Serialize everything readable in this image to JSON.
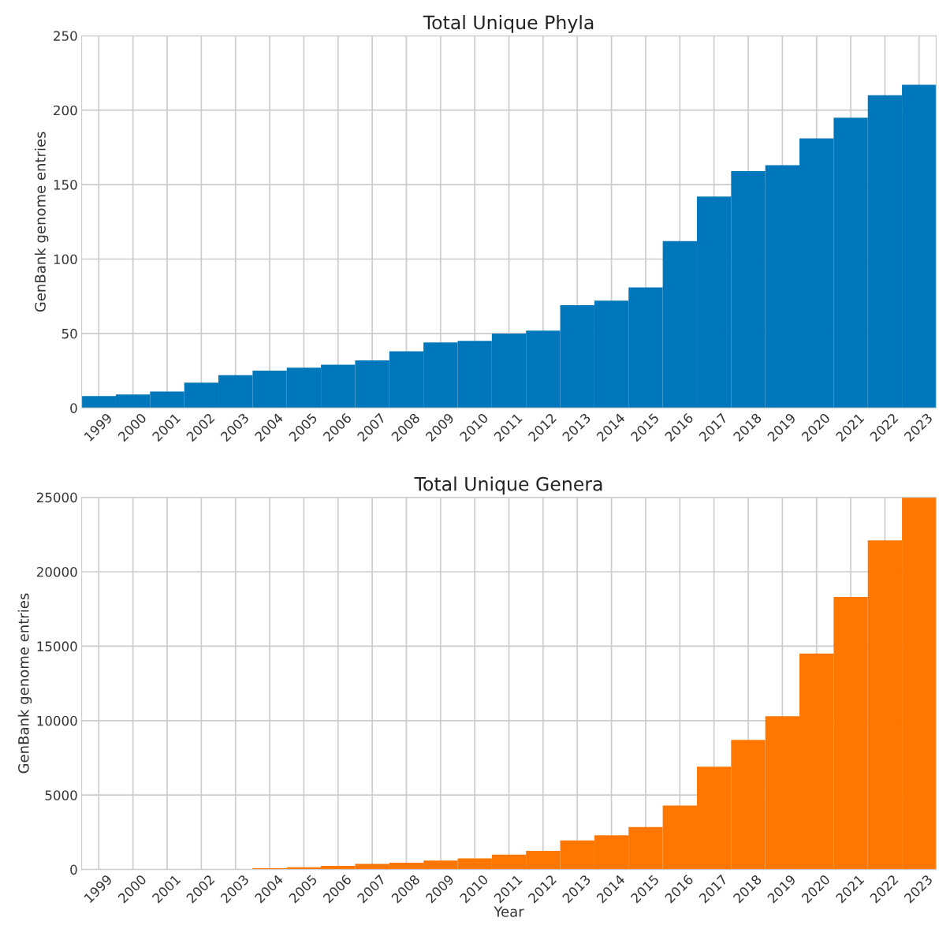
{
  "chart_data": [
    {
      "type": "bar",
      "title": "Total Unique Phyla",
      "ylabel": "GenBank genome entries",
      "categories": [
        "1999",
        "2000",
        "2001",
        "2002",
        "2003",
        "2004",
        "2005",
        "2006",
        "2007",
        "2008",
        "2009",
        "2010",
        "2011",
        "2012",
        "2013",
        "2014",
        "2015",
        "2016",
        "2017",
        "2018",
        "2019",
        "2020",
        "2021",
        "2022",
        "2023"
      ],
      "series": [
        {
          "color": "#0077bb",
          "values": [
            8,
            9,
            11,
            17,
            22,
            25,
            27,
            29,
            32,
            38,
            44,
            45,
            50,
            52,
            69,
            72,
            81,
            112,
            142,
            159,
            163,
            181,
            195,
            210,
            217
          ]
        }
      ],
      "ylim": [
        0,
        250
      ],
      "yticks": [
        0,
        50,
        100,
        150,
        200,
        250
      ],
      "grid": true
    },
    {
      "type": "bar",
      "title": "Total Unique Genera",
      "ylabel": "GenBank genome entries",
      "xlabel": "Year",
      "categories": [
        "1999",
        "2000",
        "2001",
        "2002",
        "2003",
        "2004",
        "2005",
        "2006",
        "2007",
        "2008",
        "2009",
        "2010",
        "2011",
        "2012",
        "2013",
        "2014",
        "2015",
        "2016",
        "2017",
        "2018",
        "2019",
        "2020",
        "2021",
        "2022",
        "2023"
      ],
      "series": [
        {
          "color": "#ff7700",
          "values": [
            0,
            0,
            0,
            0,
            0,
            80,
            150,
            250,
            380,
            450,
            600,
            750,
            1000,
            1250,
            1950,
            2300,
            2850,
            4300,
            6900,
            8700,
            10300,
            14500,
            18300,
            22100,
            25000
          ]
        }
      ],
      "ylim": [
        0,
        25000
      ],
      "yticks": [
        0,
        5000,
        10000,
        15000,
        20000,
        25000
      ],
      "grid": true
    }
  ]
}
